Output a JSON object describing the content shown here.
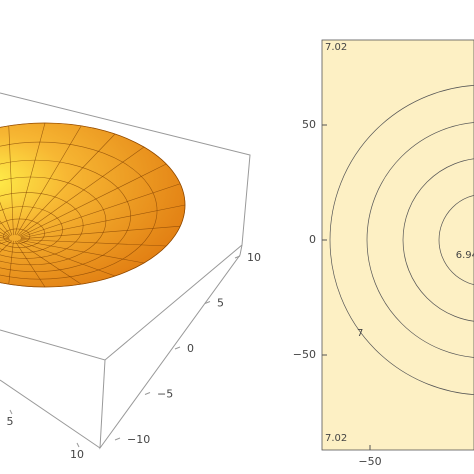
{
  "chart_data": [
    {
      "type": "surface3d",
      "ylim": [
        -10,
        10
      ],
      "yticks": [
        {
          "value": 10,
          "label": "10"
        },
        {
          "value": 5,
          "label": "5"
        },
        {
          "value": 0,
          "label": "0"
        },
        {
          "value": -5,
          "label": "−5"
        },
        {
          "value": -10,
          "label": "−10"
        }
      ],
      "xlim": [
        -10,
        10
      ],
      "xticks": [
        5,
        10
      ],
      "color": "#f39c2a"
    },
    {
      "type": "contour",
      "xlim": [
        -71,
        71
      ],
      "ylim": [
        -87,
        87
      ],
      "xticks": [
        {
          "value": -50,
          "label": "−50"
        }
      ],
      "yticks": [
        {
          "value": 50,
          "label": "50"
        },
        {
          "value": 0,
          "label": "0"
        },
        {
          "value": -50,
          "label": "−50"
        }
      ],
      "contour_labels": [
        "7.02",
        "7.02",
        "6.94",
        "7"
      ],
      "color": "#fdf0c4"
    }
  ]
}
